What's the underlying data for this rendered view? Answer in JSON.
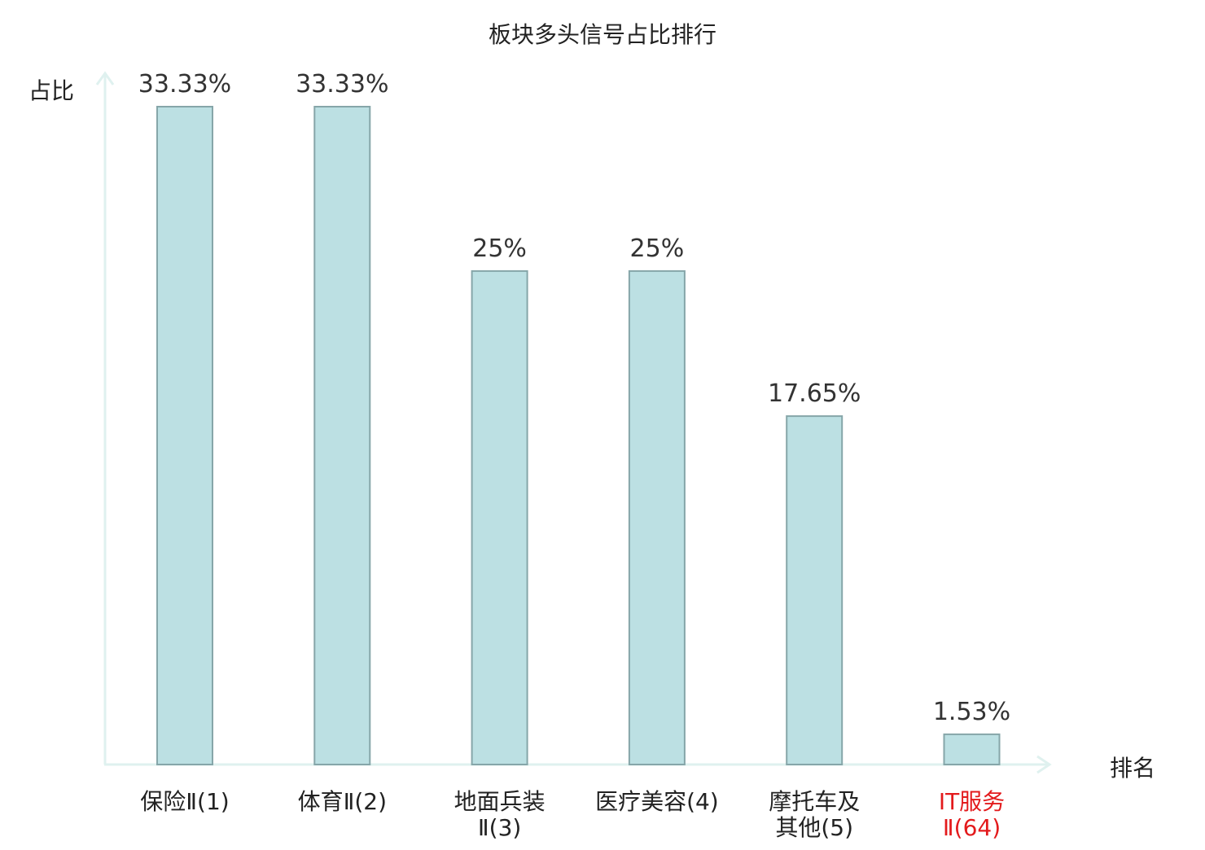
{
  "chart_data": {
    "type": "bar",
    "title": "板块多头信号占比排行",
    "ylabel": "占比",
    "xlabel": "排名",
    "ylim": [
      0,
      35
    ],
    "grid": false,
    "legend": "none",
    "categories": [
      [
        "保险Ⅱ(1)"
      ],
      [
        "体育Ⅱ(2)"
      ],
      [
        "地面兵装",
        "Ⅱ(3)"
      ],
      [
        "医疗美容(4)"
      ],
      [
        "摩托车及",
        "其他(5)"
      ],
      [
        "IT服务",
        "Ⅱ(64)"
      ]
    ],
    "values": [
      33.33,
      33.33,
      25,
      25,
      17.65,
      1.53
    ],
    "value_labels": [
      "33.33%",
      "33.33%",
      "25%",
      "25%",
      "17.65%",
      "1.53%"
    ],
    "highlight_index": 5
  },
  "colors": {
    "bar_fill": "#bce0e3",
    "bar_stroke": "#86a6a9",
    "axis": "#dff1ef",
    "text": "#222222",
    "value_text": "#333333",
    "highlight": "#e31a1c"
  }
}
